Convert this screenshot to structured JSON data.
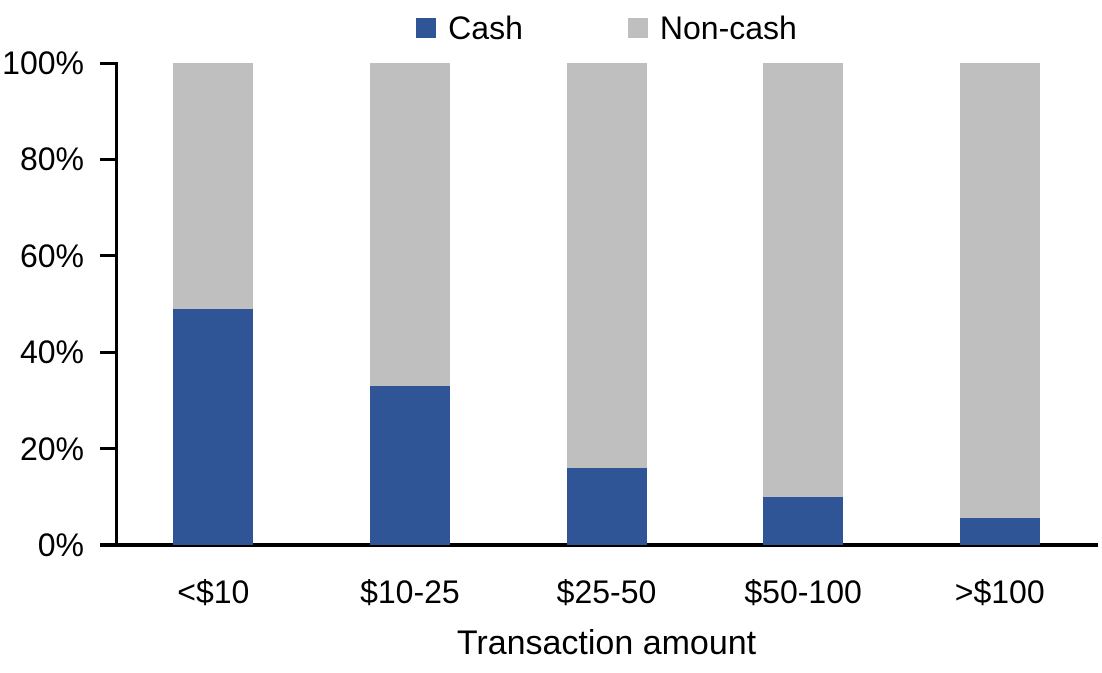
{
  "chart_data": {
    "type": "bar",
    "stacked": true,
    "stacked_total": 100,
    "title": "",
    "xlabel": "Transaction amount",
    "ylabel": "",
    "ylim": [
      0,
      100
    ],
    "yticks": [
      0,
      20,
      40,
      60,
      80,
      100
    ],
    "ytick_labels": [
      "0%",
      "20%",
      "40%",
      "60%",
      "80%",
      "100%"
    ],
    "grid": false,
    "legend_position": "top-center",
    "categories": [
      "<$10",
      "$10-25",
      "$25-50",
      "$50-100",
      ">$100"
    ],
    "series": [
      {
        "name": "Cash",
        "color": "#2F5597",
        "values": [
          49,
          33,
          16,
          10,
          5.5
        ]
      },
      {
        "name": "Non-cash",
        "color": "#BFBFBF",
        "values": [
          51,
          67,
          84,
          90,
          94.5
        ]
      }
    ]
  },
  "colors": {
    "axis": "#000000",
    "text": "#000000",
    "background": "#FFFFFF",
    "cash": "#2F5597",
    "non_cash": "#BFBFBF"
  }
}
